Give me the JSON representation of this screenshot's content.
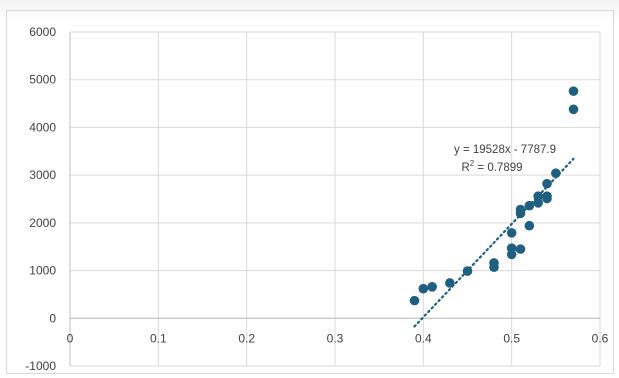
{
  "chart_data": {
    "type": "scatter",
    "title": "",
    "xlabel": "",
    "ylabel": "",
    "xlim": [
      0,
      0.6
    ],
    "ylim": [
      -1000,
      6000
    ],
    "x_ticks": [
      "0",
      "0.1",
      "0.2",
      "0.3",
      "0.4",
      "0.5",
      "0.6"
    ],
    "y_ticks": [
      "-1000",
      "0",
      "1000",
      "2000",
      "3000",
      "4000",
      "5000",
      "6000"
    ],
    "x_tick_values": [
      0,
      0.1,
      0.2,
      0.3,
      0.4,
      0.5,
      0.6
    ],
    "y_tick_values": [
      -1000,
      0,
      1000,
      2000,
      3000,
      4000,
      5000,
      6000
    ],
    "grid": true,
    "legend": "none",
    "marker_color": "#1f5f7f",
    "trendline_color": "#1f5f7f",
    "points": [
      {
        "x": 0.39,
        "y": 370
      },
      {
        "x": 0.4,
        "y": 620
      },
      {
        "x": 0.41,
        "y": 660
      },
      {
        "x": 0.43,
        "y": 740
      },
      {
        "x": 0.45,
        "y": 990
      },
      {
        "x": 0.48,
        "y": 1070
      },
      {
        "x": 0.48,
        "y": 1160
      },
      {
        "x": 0.5,
        "y": 1340
      },
      {
        "x": 0.5,
        "y": 1470
      },
      {
        "x": 0.5,
        "y": 1790
      },
      {
        "x": 0.51,
        "y": 1450
      },
      {
        "x": 0.51,
        "y": 2200
      },
      {
        "x": 0.51,
        "y": 2280
      },
      {
        "x": 0.52,
        "y": 1940
      },
      {
        "x": 0.52,
        "y": 2360
      },
      {
        "x": 0.53,
        "y": 2420
      },
      {
        "x": 0.53,
        "y": 2560
      },
      {
        "x": 0.54,
        "y": 2510
      },
      {
        "x": 0.54,
        "y": 2560
      },
      {
        "x": 0.54,
        "y": 2820
      },
      {
        "x": 0.55,
        "y": 3040
      },
      {
        "x": 0.57,
        "y": 4380
      },
      {
        "x": 0.57,
        "y": 4760
      }
    ],
    "trendline": {
      "slope": 19528,
      "intercept": -7787.9,
      "x_range": [
        0.39,
        0.57
      ],
      "equation_label": "y = 19528x - 7787.9",
      "r2_prefix": "R",
      "r2_sup": "2",
      "r2_suffix": " = 0.7899"
    }
  }
}
